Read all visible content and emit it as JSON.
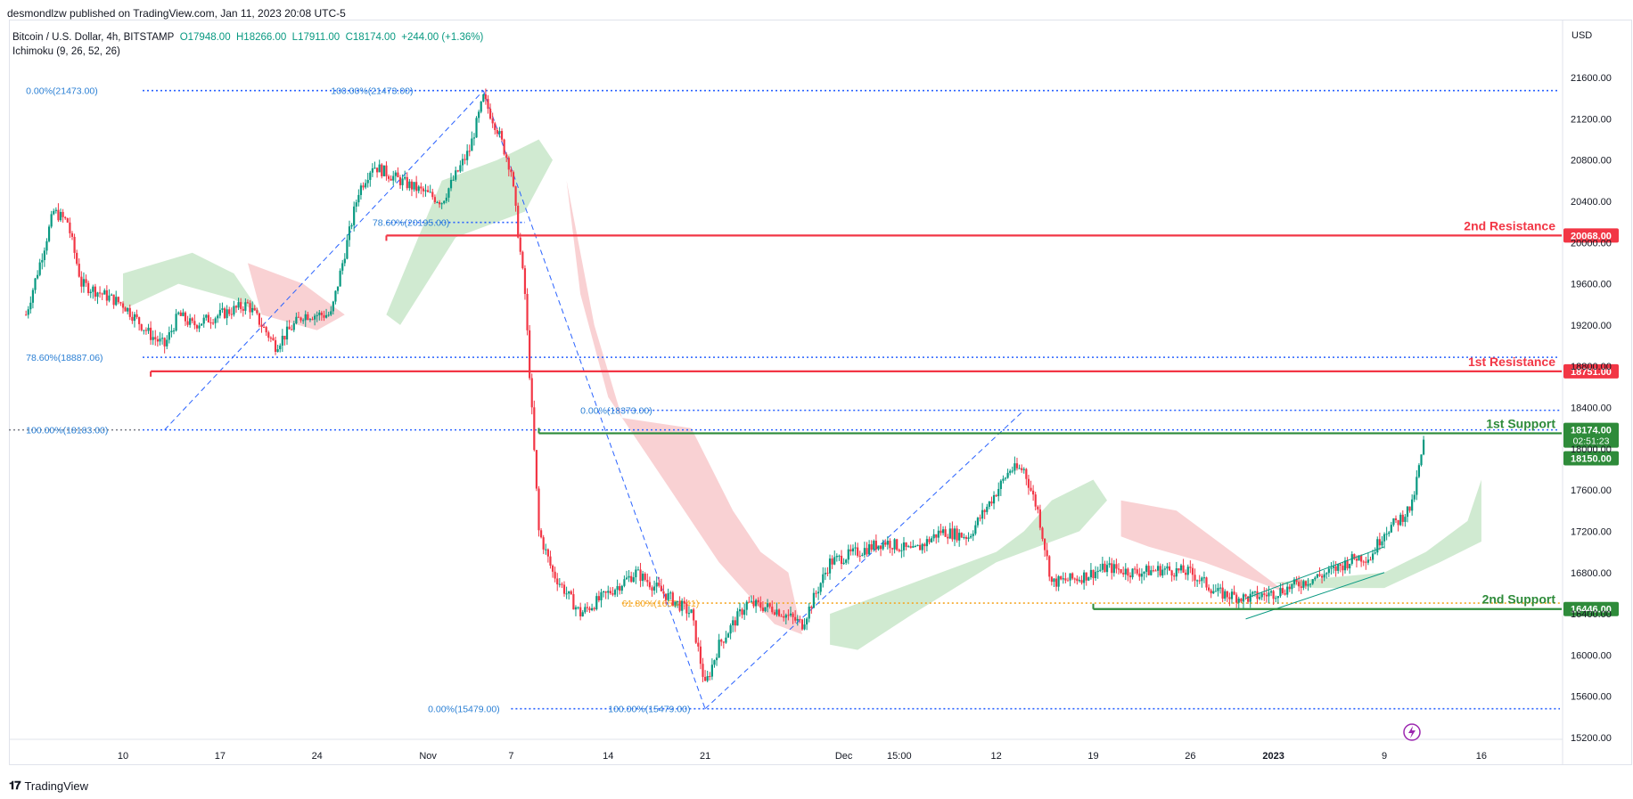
{
  "header": {
    "published": "desmondlzw published on TradingView.com, Jan 11, 2023 20:08 UTC-5",
    "symbol": "Bitcoin / U.S. Dollar, 4h, BITSTAMP",
    "open": "O17948.00",
    "high": "H18266.00",
    "low": "L17911.00",
    "close": "C18174.00",
    "change": "+244.00 (+1.36%)",
    "indicator": "Ichimoku (9, 26, 52, 26)",
    "currency": "USD"
  },
  "footer": {
    "brand": "TradingView"
  },
  "colors": {
    "up": "#089981",
    "down": "#f23645",
    "resistance": "#f23645",
    "support": "#2e8b3a",
    "fib": "#2962ff",
    "fibText": "#2a7fd4",
    "cloudGreen": "#c8e6c9",
    "cloudRed": "#f8c9cb"
  },
  "chart_data": {
    "type": "candlestick",
    "ylim": [
      15200,
      21800
    ],
    "y_ticks": [
      "21600.00",
      "21200.00",
      "20800.00",
      "20400.00",
      "20000.00",
      "19600.00",
      "19200.00",
      "18800.00",
      "18400.00",
      "18000.00",
      "17600.00",
      "17200.00",
      "16800.00",
      "16400.00",
      "16000.00",
      "15600.00",
      "15200.00"
    ],
    "x_ticks": [
      {
        "label": "10",
        "date": "2022-10-10"
      },
      {
        "label": "17",
        "date": "2022-10-17"
      },
      {
        "label": "24",
        "date": "2022-10-24"
      },
      {
        "label": "Nov",
        "date": "2022-11-01"
      },
      {
        "label": "7",
        "date": "2022-11-07"
      },
      {
        "label": "14",
        "date": "2022-11-14"
      },
      {
        "label": "21",
        "date": "2022-11-21"
      },
      {
        "label": "Dec",
        "date": "2022-12-01"
      },
      {
        "label": "15:00",
        "date": "2022-12-05"
      },
      {
        "label": "12",
        "date": "2022-12-12"
      },
      {
        "label": "19",
        "date": "2022-12-19"
      },
      {
        "label": "26",
        "date": "2022-12-26"
      },
      {
        "label": "2023",
        "date": "2023-01-01"
      },
      {
        "label": "9",
        "date": "2023-01-09"
      },
      {
        "label": "16",
        "date": "2023-01-16"
      }
    ],
    "levels": [
      {
        "name": "2nd Resistance",
        "value": 20068.0,
        "label": "20068.00",
        "color": "#f23645",
        "start": "2022-10-29"
      },
      {
        "name": "1st Resistance",
        "value": 18751.0,
        "label": "18751.00",
        "color": "#f23645",
        "start": "2022-10-12"
      },
      {
        "name": "1st Support",
        "value": 18150.0,
        "label": "18150.00",
        "color": "#2e8b3a",
        "start": "2022-11-09"
      },
      {
        "name": "2nd Support",
        "value": 16446.0,
        "label": "16446.00",
        "color": "#2e8b3a",
        "start": "2022-12-19"
      }
    ],
    "current_price": {
      "value": "18174.00",
      "countdown": "02:51:23"
    },
    "fib_labels": [
      {
        "text": "0.00%(21473.00)",
        "value": 21473,
        "date": "2022-10-03"
      },
      {
        "text": "100.00%(21473.00)",
        "value": 21473,
        "date": "2022-10-25"
      },
      {
        "text": "78.60%(20195.00)",
        "value": 20195,
        "date": "2022-10-28"
      },
      {
        "text": "78.60%(18887.06)",
        "value": 18887,
        "date": "2022-10-03"
      },
      {
        "text": "100.00%(18183.00)",
        "value": 18183,
        "date": "2022-10-03"
      },
      {
        "text": "0.00%(18373.00)",
        "value": 18373,
        "date": "2022-11-12"
      },
      {
        "text": "61.80%(16504.41)",
        "value": 16504,
        "date": "2022-11-15"
      },
      {
        "text": "0.00%(15479.00)",
        "value": 15479,
        "date": "2022-11-01"
      },
      {
        "text": "100.00%(15479.00)",
        "value": 15479,
        "date": "2022-11-14"
      }
    ],
    "path": [
      [
        "2022-10-03",
        19300
      ],
      [
        "2022-10-05",
        20300
      ],
      [
        "2022-10-06",
        20200
      ],
      [
        "2022-10-07",
        19600
      ],
      [
        "2022-10-10",
        19400
      ],
      [
        "2022-10-12",
        19100
      ],
      [
        "2022-10-13",
        19000
      ],
      [
        "2022-10-14",
        19300
      ],
      [
        "2022-10-15",
        19200
      ],
      [
        "2022-10-17",
        19300
      ],
      [
        "2022-10-19",
        19400
      ],
      [
        "2022-10-21",
        19000
      ],
      [
        "2022-10-23",
        19300
      ],
      [
        "2022-10-25",
        19300
      ],
      [
        "2022-10-27",
        20500
      ],
      [
        "2022-10-28",
        20750
      ],
      [
        "2022-10-30",
        20600
      ],
      [
        "2022-11-02",
        20400
      ],
      [
        "2022-11-04",
        20900
      ],
      [
        "2022-11-05",
        21400
      ],
      [
        "2022-11-06",
        21100
      ],
      [
        "2022-11-07",
        20700
      ],
      [
        "2022-11-08",
        19500
      ],
      [
        "2022-11-09",
        17200
      ],
      [
        "2022-11-10",
        16800
      ],
      [
        "2022-11-12",
        16400
      ],
      [
        "2022-11-14",
        16600
      ],
      [
        "2022-11-16",
        16800
      ],
      [
        "2022-11-18",
        16600
      ],
      [
        "2022-11-20",
        16400
      ],
      [
        "2022-11-21",
        15700
      ],
      [
        "2022-11-22",
        16100
      ],
      [
        "2022-11-24",
        16500
      ],
      [
        "2022-11-26",
        16450
      ],
      [
        "2022-11-28",
        16300
      ],
      [
        "2022-11-30",
        16900
      ],
      [
        "2022-12-02",
        17000
      ],
      [
        "2022-12-04",
        17100
      ],
      [
        "2022-12-06",
        17000
      ],
      [
        "2022-12-08",
        17200
      ],
      [
        "2022-12-10",
        17150
      ],
      [
        "2022-12-13",
        17800
      ],
      [
        "2022-12-14",
        17800
      ],
      [
        "2022-12-15",
        17400
      ],
      [
        "2022-12-16",
        16700
      ],
      [
        "2022-12-18",
        16750
      ],
      [
        "2022-12-20",
        16850
      ],
      [
        "2022-12-22",
        16800
      ],
      [
        "2022-12-24",
        16830
      ],
      [
        "2022-12-26",
        16800
      ],
      [
        "2022-12-28",
        16600
      ],
      [
        "2022-12-30",
        16550
      ],
      [
        "2023-01-01",
        16600
      ],
      [
        "2023-01-03",
        16700
      ],
      [
        "2023-01-05",
        16800
      ],
      [
        "2023-01-07",
        16950
      ],
      [
        "2023-01-08",
        16950
      ],
      [
        "2023-01-09",
        17200
      ],
      [
        "2023-01-10",
        17300
      ],
      [
        "2023-01-11",
        17450
      ],
      [
        "2023-01-12",
        18174
      ]
    ]
  }
}
